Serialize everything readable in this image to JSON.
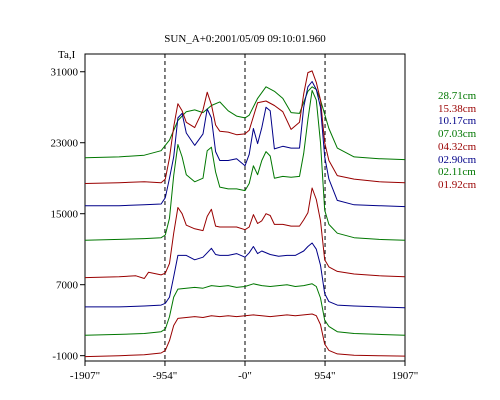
{
  "chart_data": {
    "type": "line",
    "title": "SUN_A+0:2001/05/09 09:10:01.960",
    "ylabel": "Ta,I",
    "xlabel": "",
    "xlim": [
      -1907,
      1907
    ],
    "ylim": [
      -1600,
      33000
    ],
    "x_ticks": [
      -1907,
      -954,
      0,
      954,
      1907
    ],
    "x_tick_labels": [
      "-1907\"",
      "-954\"",
      "-0\"",
      "954\"",
      "1907\""
    ],
    "y_ticks": [
      -1000,
      7000,
      15000,
      23000,
      31000
    ],
    "y_tick_labels": [
      "-1000",
      "7000",
      "15000",
      "23000",
      "31000"
    ],
    "vertical_dashed_lines_at_x": [
      -954,
      0,
      954
    ],
    "grid": false,
    "legend_position": "right",
    "series": [
      {
        "name": "28.71cm",
        "color": "#007700",
        "x": [
          -1907,
          -1500,
          -1200,
          -1000,
          -900,
          -800,
          -700,
          -600,
          -500,
          -400,
          -300,
          -200,
          -100,
          0,
          50,
          150,
          250,
          350,
          450,
          550,
          650,
          750,
          800,
          850,
          900,
          1000,
          1100,
          1300,
          1600,
          1907
        ],
        "y": [
          21300,
          21400,
          21600,
          22100,
          23300,
          25500,
          26500,
          26700,
          26400,
          27200,
          27600,
          26600,
          26000,
          25800,
          26100,
          28000,
          29300,
          28800,
          28000,
          26400,
          26300,
          28800,
          29300,
          29000,
          27800,
          24600,
          22400,
          21400,
          21200,
          21100
        ]
      },
      {
        "name": "15.38cm",
        "color": "#990000",
        "x": [
          -1907,
          -1500,
          -1200,
          -1000,
          -950,
          -900,
          -850,
          -800,
          -750,
          -700,
          -600,
          -500,
          -450,
          -400,
          -350,
          -300,
          -200,
          -100,
          0,
          50,
          150,
          250,
          350,
          450,
          550,
          650,
          700,
          750,
          800,
          850,
          900,
          950,
          1000,
          1100,
          1300,
          1600,
          1907
        ],
        "y": [
          18400,
          18500,
          18600,
          18500,
          18900,
          21300,
          24800,
          27400,
          26600,
          25300,
          24700,
          26700,
          28700,
          27300,
          25000,
          24300,
          24200,
          23900,
          24000,
          24400,
          27500,
          27700,
          27200,
          26500,
          24500,
          25300,
          28500,
          30900,
          31100,
          29800,
          27800,
          23000,
          21000,
          19300,
          18900,
          18600,
          18500
        ]
      },
      {
        "name": "10.17cm",
        "color": "#000088",
        "x": [
          -1907,
          -1500,
          -1200,
          -1000,
          -950,
          -900,
          -850,
          -800,
          -750,
          -700,
          -600,
          -500,
          -450,
          -400,
          -350,
          -300,
          -200,
          -100,
          0,
          50,
          100,
          150,
          200,
          250,
          300,
          350,
          450,
          550,
          650,
          700,
          750,
          800,
          850,
          900,
          950,
          1000,
          1100,
          1300,
          1600,
          1907
        ],
        "y": [
          15900,
          15900,
          16000,
          16100,
          16800,
          19000,
          21400,
          25800,
          26300,
          24100,
          22700,
          24000,
          26800,
          25800,
          22000,
          21000,
          21000,
          21200,
          20400,
          21700,
          24600,
          22900,
          24700,
          27000,
          26600,
          22300,
          22600,
          22400,
          22400,
          27000,
          29300,
          29900,
          29000,
          27000,
          21400,
          18900,
          16500,
          16000,
          15900,
          15800
        ]
      },
      {
        "name": "07.03cm",
        "color": "#007700",
        "x": [
          -1907,
          -1500,
          -1200,
          -1000,
          -950,
          -900,
          -850,
          -800,
          -750,
          -700,
          -600,
          -500,
          -450,
          -400,
          -350,
          -300,
          -200,
          -100,
          0,
          50,
          100,
          150,
          200,
          250,
          300,
          350,
          450,
          550,
          650,
          700,
          750,
          800,
          850,
          900,
          950,
          1000,
          1100,
          1300,
          1600,
          1907
        ],
        "y": [
          12000,
          12100,
          12200,
          12300,
          12600,
          14500,
          19300,
          22800,
          21400,
          19400,
          18600,
          19000,
          22100,
          22500,
          19700,
          18000,
          17800,
          17800,
          17600,
          18400,
          20400,
          19400,
          21000,
          22000,
          21500,
          19000,
          19200,
          19100,
          19200,
          21800,
          25600,
          28900,
          27800,
          23000,
          15400,
          13800,
          12800,
          12300,
          12100,
          12000
        ]
      },
      {
        "name": "04.32cm",
        "color": "#990000",
        "x": [
          -1907,
          -1500,
          -1300,
          -1200,
          -1150,
          -1000,
          -950,
          -900,
          -850,
          -800,
          -750,
          -700,
          -600,
          -500,
          -450,
          -400,
          -350,
          -300,
          -200,
          -100,
          0,
          50,
          100,
          150,
          200,
          250,
          300,
          350,
          450,
          550,
          650,
          700,
          750,
          800,
          850,
          900,
          950,
          1000,
          1100,
          1300,
          1600,
          1907
        ],
        "y": [
          7800,
          7900,
          8000,
          7700,
          8400,
          8100,
          8300,
          9400,
          12800,
          15700,
          15000,
          13700,
          13300,
          13100,
          14700,
          15500,
          13600,
          13500,
          13500,
          13500,
          13200,
          13500,
          14900,
          13900,
          14200,
          15000,
          14800,
          13800,
          13800,
          13600,
          13600,
          14300,
          15100,
          17900,
          16600,
          14200,
          9800,
          9000,
          8500,
          8200,
          8000,
          7900
        ]
      },
      {
        "name": "02.90cm",
        "color": "#000088",
        "x": [
          -1907,
          -1500,
          -1200,
          -1000,
          -950,
          -900,
          -850,
          -800,
          -700,
          -600,
          -500,
          -450,
          -400,
          -350,
          -300,
          -200,
          -100,
          0,
          50,
          100,
          150,
          200,
          300,
          400,
          500,
          600,
          700,
          750,
          800,
          850,
          900,
          950,
          1000,
          1100,
          1300,
          1600,
          1907
        ],
        "y": [
          4500,
          4500,
          4600,
          4700,
          4900,
          5600,
          7900,
          10300,
          10300,
          9800,
          10100,
          10600,
          11100,
          10400,
          10300,
          10300,
          10500,
          10100,
          10600,
          11300,
          10500,
          10800,
          10400,
          10200,
          10300,
          10300,
          10800,
          11300,
          11700,
          11000,
          9200,
          6000,
          5100,
          4700,
          4600,
          4500,
          4400
        ]
      },
      {
        "name": "02.11cm",
        "color": "#007700",
        "x": [
          -1907,
          -1500,
          -1200,
          -1000,
          -950,
          -900,
          -850,
          -800,
          -700,
          -600,
          -500,
          -400,
          -300,
          -200,
          -100,
          0,
          100,
          200,
          300,
          400,
          500,
          600,
          700,
          800,
          850,
          900,
          950,
          1000,
          1100,
          1300,
          1600,
          1907
        ],
        "y": [
          1300,
          1400,
          1500,
          1700,
          2000,
          3400,
          5600,
          6500,
          6600,
          6700,
          6600,
          6900,
          6800,
          6900,
          6700,
          6800,
          7100,
          6900,
          6800,
          6900,
          7000,
          6800,
          6900,
          7100,
          6800,
          5500,
          3000,
          2300,
          1700,
          1500,
          1400,
          1300
        ]
      },
      {
        "name": "01.92cm",
        "color": "#990000",
        "x": [
          -1907,
          -1500,
          -1200,
          -1000,
          -950,
          -900,
          -850,
          -800,
          -700,
          -600,
          -500,
          -400,
          -300,
          -200,
          -100,
          0,
          100,
          200,
          300,
          400,
          500,
          600,
          700,
          800,
          850,
          900,
          950,
          1000,
          1100,
          1300,
          1600,
          1907
        ],
        "y": [
          -1100,
          -1000,
          -900,
          -700,
          -400,
          700,
          2400,
          3200,
          3300,
          3400,
          3300,
          3500,
          3400,
          3500,
          3400,
          3500,
          3600,
          3500,
          3400,
          3500,
          3600,
          3500,
          3600,
          3700,
          3500,
          2500,
          300,
          -400,
          -800,
          -950,
          -1000,
          -1050
        ]
      }
    ]
  }
}
